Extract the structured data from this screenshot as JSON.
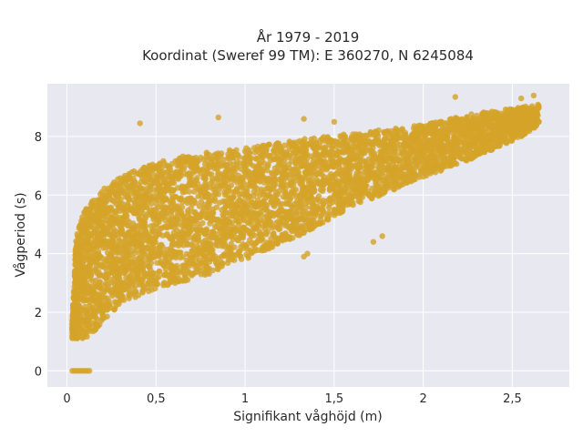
{
  "chart_data": {
    "type": "scatter",
    "title_line1": "År 1979 - 2019",
    "title_line2": "Koordinat (Sweref 99 TM): E 360270, N 6245084",
    "xlabel": "Signifikant våghöjd (m)",
    "ylabel": "Vågperiod (s)",
    "xlim": [
      -0.11,
      2.82
    ],
    "ylim": [
      -0.55,
      9.8
    ],
    "x_ticks": [
      0,
      0.5,
      1,
      1.5,
      2,
      2.5
    ],
    "x_tick_labels": [
      "0",
      "0,5",
      "1",
      "1,5",
      "2",
      "2,5"
    ],
    "y_ticks": [
      0,
      2,
      4,
      6,
      8
    ],
    "y_tick_labels": [
      "0",
      "2",
      "4",
      "6",
      "8"
    ],
    "grid": true,
    "point_color": "#d4a32a",
    "plot_background": "#e8e8f0",
    "envelope": {
      "description_of_density_bands": "none",
      "lower": [
        [
          0.03,
          1.1
        ],
        [
          0.1,
          1.1
        ],
        [
          0.2,
          1.6
        ],
        [
          0.3,
          2.3
        ],
        [
          0.5,
          2.8
        ],
        [
          0.8,
          3.3
        ],
        [
          1.0,
          3.8
        ],
        [
          1.3,
          4.6
        ],
        [
          1.6,
          5.6
        ],
        [
          2.0,
          6.6
        ],
        [
          2.3,
          7.3
        ],
        [
          2.55,
          8.0
        ],
        [
          2.65,
          8.4
        ]
      ],
      "upper": [
        [
          0.03,
          1.7
        ],
        [
          0.05,
          4.5
        ],
        [
          0.1,
          5.6
        ],
        [
          0.2,
          6.2
        ],
        [
          0.35,
          6.8
        ],
        [
          0.5,
          7.1
        ],
        [
          0.7,
          7.4
        ],
        [
          1.0,
          7.6
        ],
        [
          1.3,
          7.9
        ],
        [
          1.6,
          8.1
        ],
        [
          2.0,
          8.4
        ],
        [
          2.3,
          8.8
        ],
        [
          2.55,
          9.0
        ],
        [
          2.65,
          9.1
        ]
      ]
    },
    "outliers": [
      {
        "x": 0.41,
        "y": 8.45
      },
      {
        "x": 0.85,
        "y": 8.65
      },
      {
        "x": 1.33,
        "y": 8.6
      },
      {
        "x": 1.5,
        "y": 8.5
      },
      {
        "x": 2.18,
        "y": 9.35
      },
      {
        "x": 2.55,
        "y": 9.3
      },
      {
        "x": 2.62,
        "y": 9.4
      },
      {
        "x": 1.77,
        "y": 4.6
      },
      {
        "x": 1.72,
        "y": 4.4
      },
      {
        "x": 1.35,
        "y": 4.0
      },
      {
        "x": 1.33,
        "y": 3.9
      }
    ],
    "zero_cluster": {
      "x_from": 0.03,
      "x_to": 0.13,
      "y": 0
    }
  }
}
